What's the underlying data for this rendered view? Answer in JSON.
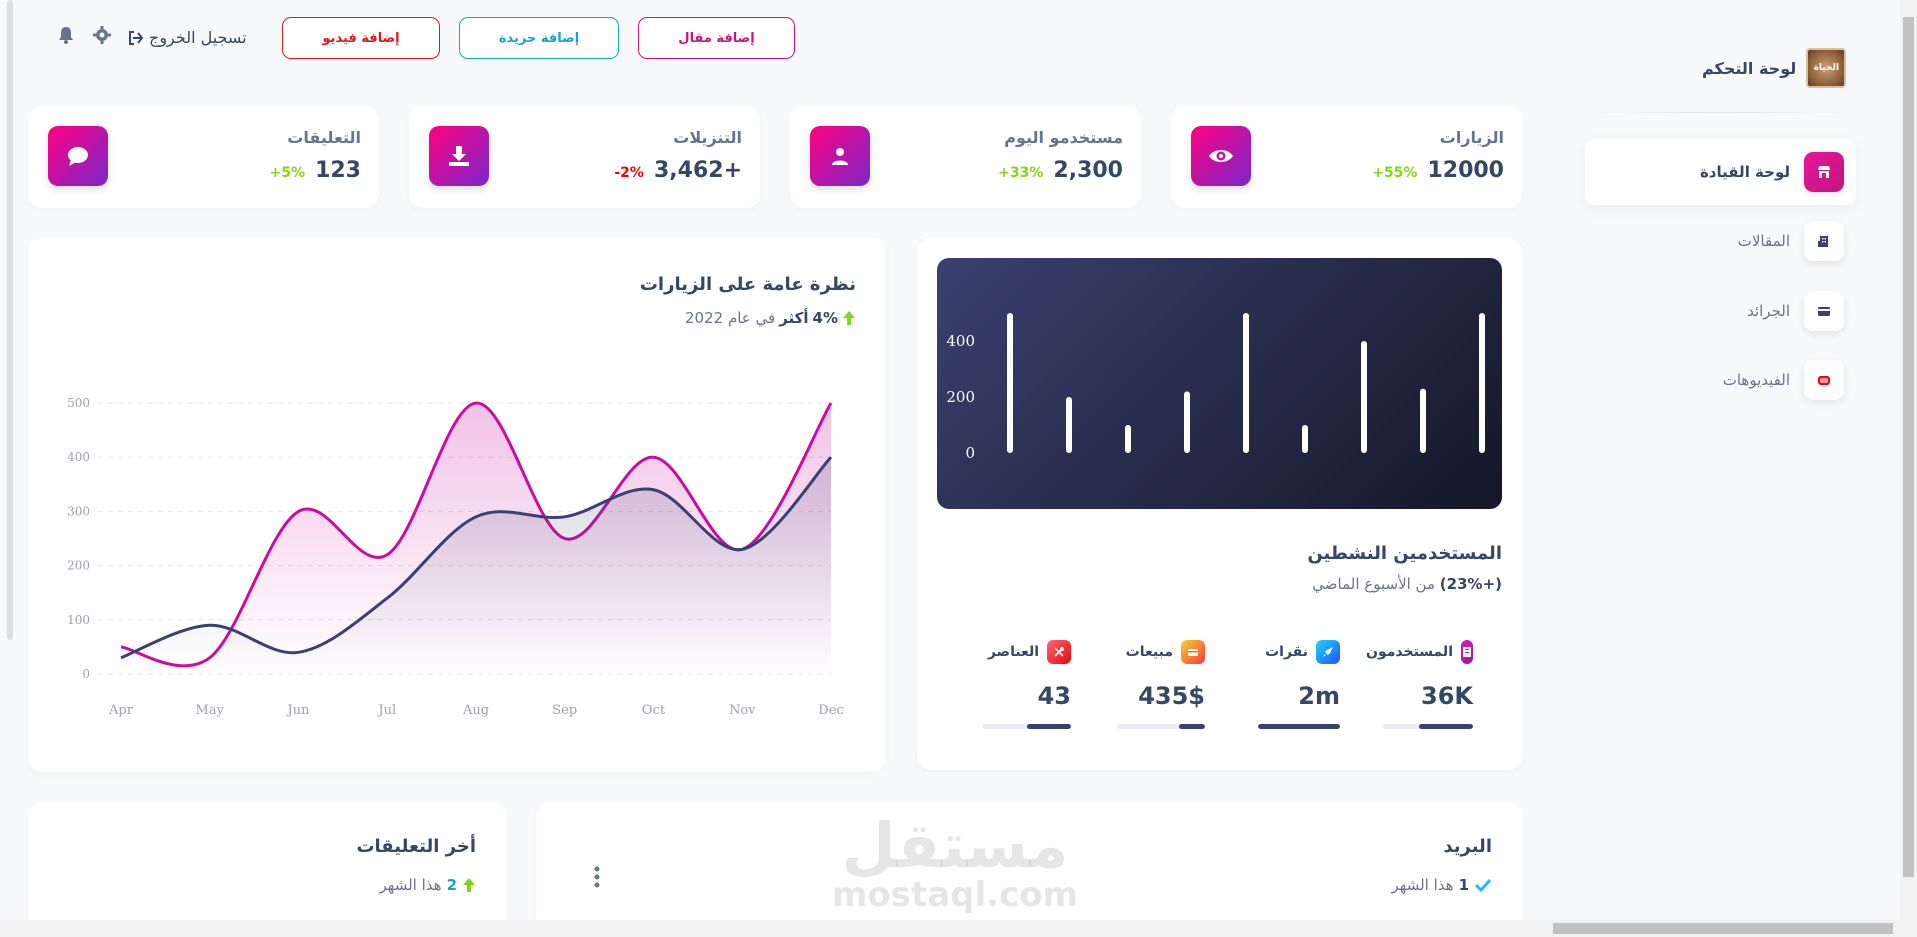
{
  "header": {
    "add_article": "إضافة مقال",
    "add_newspaper": "إضافة جريدة",
    "add_video": "إضافة فيديو",
    "logout": "تسجيل الخروج"
  },
  "sidebar": {
    "brand": "لوحة التحكم",
    "logo_text": "الحياة",
    "items": [
      {
        "label": "لوحة القيادة",
        "icon": "store-icon"
      },
      {
        "label": "المقالات",
        "icon": "building-icon"
      },
      {
        "label": "الجرائد",
        "icon": "credit-card-icon"
      },
      {
        "label": "الفيديوهات",
        "icon": "video-icon"
      }
    ]
  },
  "stats": [
    {
      "title": "الزيارات",
      "value": "12000",
      "change": "+55%",
      "trend": "up",
      "icon": "eye-icon"
    },
    {
      "title": "مستخدمو اليوم",
      "value": "2,300",
      "change": "+33%",
      "trend": "up",
      "icon": "user-icon"
    },
    {
      "title": "التنزيلات",
      "value": "+3,462",
      "change": "-2%",
      "trend": "down",
      "icon": "download-icon"
    },
    {
      "title": "التعليقات",
      "value": "123",
      "change": "+5%",
      "trend": "up",
      "icon": "comment-icon"
    }
  ],
  "active_users": {
    "title": "المستخدمين النشطين",
    "subtitle_change": "(+23%)",
    "subtitle_rest": "من الأسبوع الماضي",
    "chart_data": {
      "type": "bar",
      "values": [
        500,
        200,
        100,
        220,
        500,
        100,
        400,
        230,
        500
      ],
      "ylim": [
        0,
        500
      ],
      "yticks": [
        0,
        200,
        400
      ],
      "grid": false
    },
    "items": [
      {
        "label": "المستخدمون",
        "value": "36K",
        "progress": 0.6,
        "color": "#c11fb7",
        "icon": "document-icon"
      },
      {
        "label": "نقرات",
        "value": "2m",
        "progress": 1.0,
        "color": "#1a73e8",
        "icon": "rocket-icon"
      },
      {
        "label": "مبيعات",
        "value": "435$",
        "progress": 0.3,
        "color": "#fb8c00",
        "icon": "cart-icon"
      },
      {
        "label": "العناصر",
        "value": "43",
        "progress": 0.5,
        "color": "#e53935",
        "icon": "tools-icon"
      }
    ]
  },
  "overview": {
    "title": "نظرة عامة على الزيارات",
    "change": "4%",
    "more": "أكثر",
    "rest": "في عام 2022",
    "chart_data": {
      "type": "area",
      "categories": [
        "Apr",
        "May",
        "Jun",
        "Jul",
        "Aug",
        "Sep",
        "Oct",
        "Nov",
        "Dec"
      ],
      "series": [
        {
          "values": [
            50,
            30,
            300,
            220,
            500,
            250,
            400,
            230,
            500
          ],
          "color": "#cb0c9f"
        },
        {
          "values": [
            30,
            90,
            40,
            140,
            290,
            290,
            340,
            230,
            400
          ],
          "color": "#3a416f"
        }
      ],
      "ylim": [
        0,
        500
      ],
      "yticks": [
        0,
        100,
        200,
        300,
        400,
        500
      ],
      "grid": true
    }
  },
  "mail": {
    "title": "البريد",
    "count": "1",
    "period": "هذا الشهر"
  },
  "latest_comments": {
    "title": "أخر التعليقات",
    "count": "2",
    "period": "هذا الشهر"
  },
  "watermark": {
    "ar": "مستقل",
    "en": "mostaql.com"
  }
}
